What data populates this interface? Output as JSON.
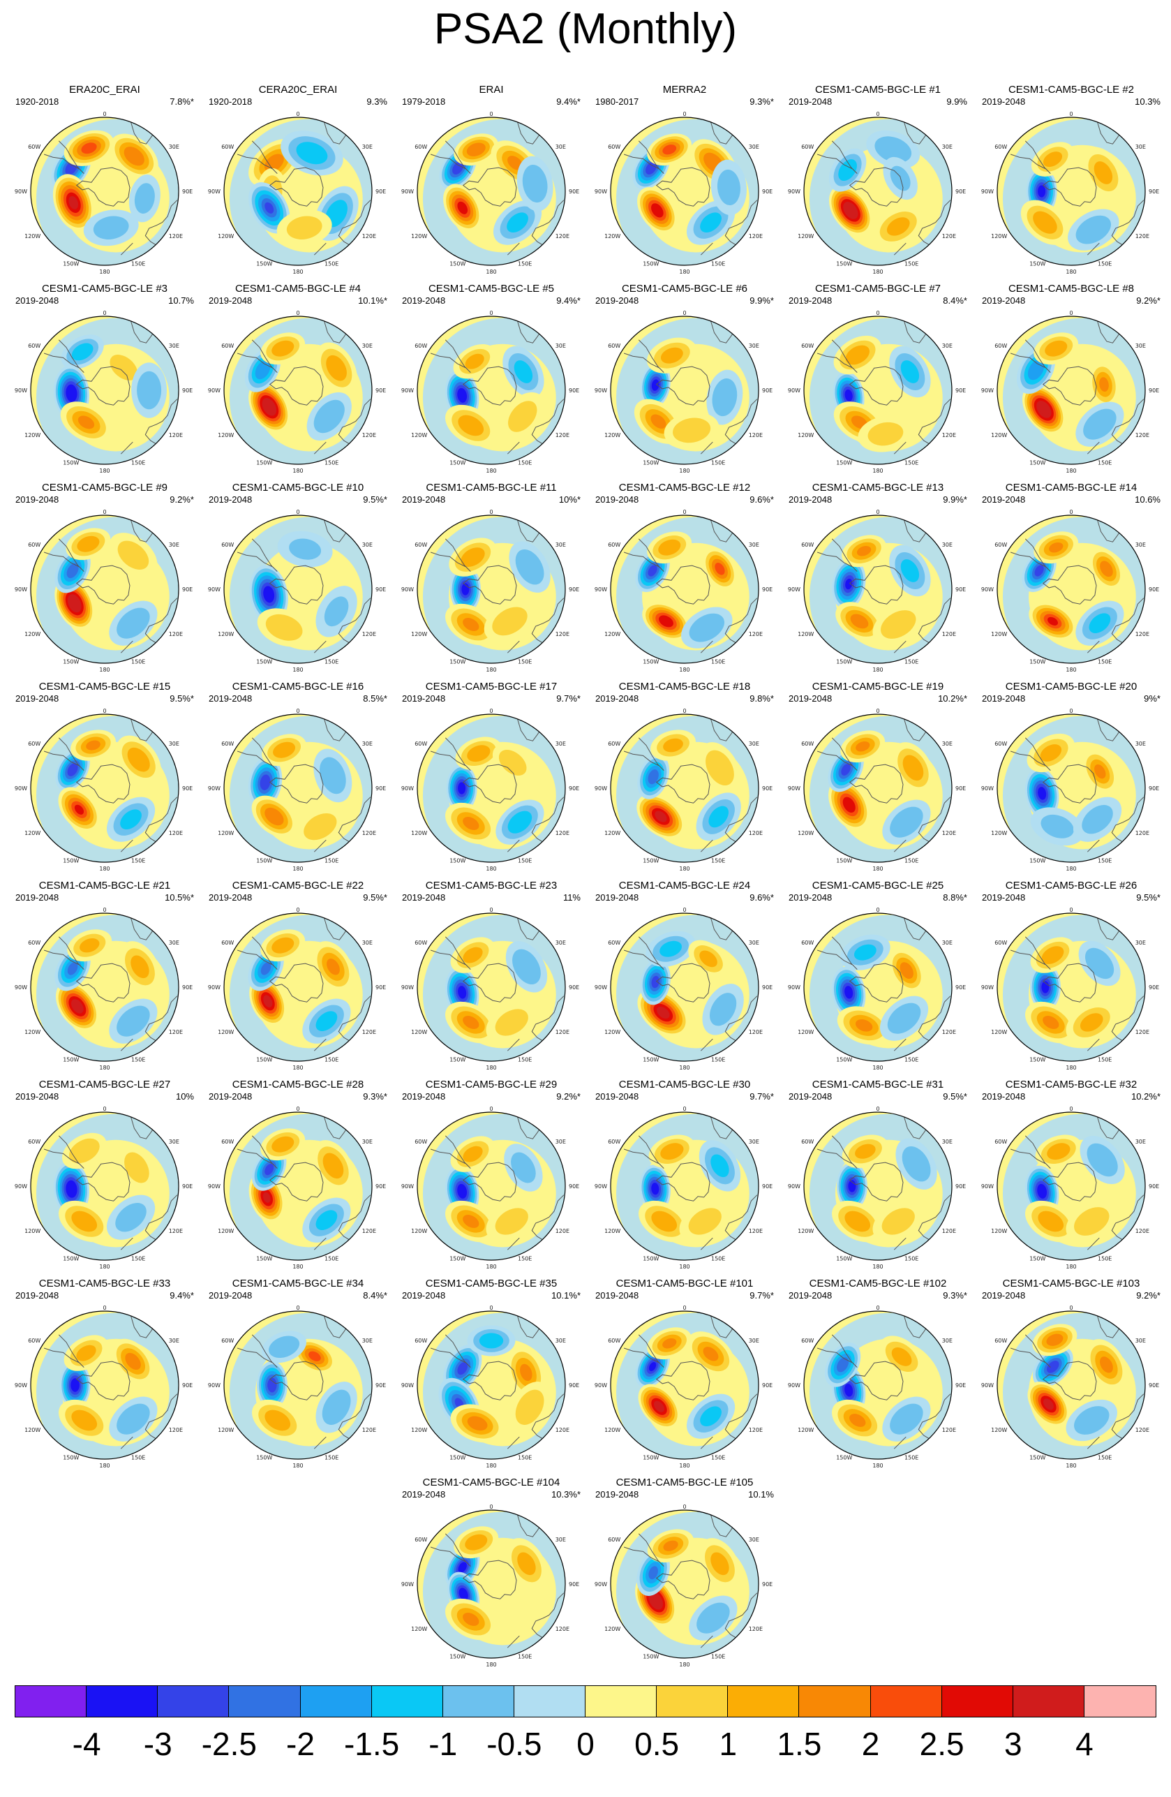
{
  "title": "PSA2 (Monthly)",
  "colorbar": {
    "colors": [
      "#8120ef",
      "#1a12f4",
      "#3443e8",
      "#3172e3",
      "#1ea0f2",
      "#0ac8f5",
      "#6cc1ee",
      "#b1def2",
      "#fdf68a",
      "#fbd33a",
      "#fbad05",
      "#f88805",
      "#f94d0b",
      "#e10a05",
      "#d01c1c",
      "#fdb3b0"
    ],
    "labels": [
      "-4",
      "-3",
      "-2.5",
      "-2",
      "-1.5",
      "-1",
      "-0.5",
      "0",
      "0.5",
      "1",
      "1.5",
      "2",
      "2.5",
      "3",
      "4"
    ]
  },
  "map_labels": {
    "top": "0",
    "upper_left": "60W",
    "upper_right": "30E",
    "left": "90W",
    "right": "90E",
    "lower_left": "120W",
    "lower_right": "120E",
    "bottom_left": "150W",
    "bottom_right": "150E",
    "bottom": "180"
  },
  "panels": [
    {
      "title": "ERA20C_ERAI",
      "years": "1920-2018",
      "pct": "7.8%*"
    },
    {
      "title": "CERA20C_ERAI",
      "years": "1920-2018",
      "pct": "9.3%"
    },
    {
      "title": "ERAI",
      "years": "1979-2018",
      "pct": "9.4%*"
    },
    {
      "title": "MERRA2",
      "years": "1980-2017",
      "pct": "9.3%*"
    },
    {
      "title": "CESM1-CAM5-BGC-LE #1",
      "years": "2019-2048",
      "pct": "9.9%"
    },
    {
      "title": "CESM1-CAM5-BGC-LE #2",
      "years": "2019-2048",
      "pct": "10.3%"
    },
    {
      "title": "CESM1-CAM5-BGC-LE #3",
      "years": "2019-2048",
      "pct": "10.7%"
    },
    {
      "title": "CESM1-CAM5-BGC-LE #4",
      "years": "2019-2048",
      "pct": "10.1%*"
    },
    {
      "title": "CESM1-CAM5-BGC-LE #5",
      "years": "2019-2048",
      "pct": "9.4%*"
    },
    {
      "title": "CESM1-CAM5-BGC-LE #6",
      "years": "2019-2048",
      "pct": "9.9%*"
    },
    {
      "title": "CESM1-CAM5-BGC-LE #7",
      "years": "2019-2048",
      "pct": "8.4%*"
    },
    {
      "title": "CESM1-CAM5-BGC-LE #8",
      "years": "2019-2048",
      "pct": "9.2%*"
    },
    {
      "title": "CESM1-CAM5-BGC-LE #9",
      "years": "2019-2048",
      "pct": "9.2%*"
    },
    {
      "title": "CESM1-CAM5-BGC-LE #10",
      "years": "2019-2048",
      "pct": "9.5%*"
    },
    {
      "title": "CESM1-CAM5-BGC-LE #11",
      "years": "2019-2048",
      "pct": "10%*"
    },
    {
      "title": "CESM1-CAM5-BGC-LE #12",
      "years": "2019-2048",
      "pct": "9.6%*"
    },
    {
      "title": "CESM1-CAM5-BGC-LE #13",
      "years": "2019-2048",
      "pct": "9.9%*"
    },
    {
      "title": "CESM1-CAM5-BGC-LE #14",
      "years": "2019-2048",
      "pct": "10.6%"
    },
    {
      "title": "CESM1-CAM5-BGC-LE #15",
      "years": "2019-2048",
      "pct": "9.5%*"
    },
    {
      "title": "CESM1-CAM5-BGC-LE #16",
      "years": "2019-2048",
      "pct": "8.5%*"
    },
    {
      "title": "CESM1-CAM5-BGC-LE #17",
      "years": "2019-2048",
      "pct": "9.7%*"
    },
    {
      "title": "CESM1-CAM5-BGC-LE #18",
      "years": "2019-2048",
      "pct": "9.8%*"
    },
    {
      "title": "CESM1-CAM5-BGC-LE #19",
      "years": "2019-2048",
      "pct": "10.2%*"
    },
    {
      "title": "CESM1-CAM5-BGC-LE #20",
      "years": "2019-2048",
      "pct": "9%*"
    },
    {
      "title": "CESM1-CAM5-BGC-LE #21",
      "years": "2019-2048",
      "pct": "10.5%*"
    },
    {
      "title": "CESM1-CAM5-BGC-LE #22",
      "years": "2019-2048",
      "pct": "9.5%*"
    },
    {
      "title": "CESM1-CAM5-BGC-LE #23",
      "years": "2019-2048",
      "pct": "11%"
    },
    {
      "title": "CESM1-CAM5-BGC-LE #24",
      "years": "2019-2048",
      "pct": "9.6%*"
    },
    {
      "title": "CESM1-CAM5-BGC-LE #25",
      "years": "2019-2048",
      "pct": "8.8%*"
    },
    {
      "title": "CESM1-CAM5-BGC-LE #26",
      "years": "2019-2048",
      "pct": "9.5%*"
    },
    {
      "title": "CESM1-CAM5-BGC-LE #27",
      "years": "2019-2048",
      "pct": "10%"
    },
    {
      "title": "CESM1-CAM5-BGC-LE #28",
      "years": "2019-2048",
      "pct": "9.3%*"
    },
    {
      "title": "CESM1-CAM5-BGC-LE #29",
      "years": "2019-2048",
      "pct": "9.2%*"
    },
    {
      "title": "CESM1-CAM5-BGC-LE #30",
      "years": "2019-2048",
      "pct": "9.7%*"
    },
    {
      "title": "CESM1-CAM5-BGC-LE #31",
      "years": "2019-2048",
      "pct": "9.5%*"
    },
    {
      "title": "CESM1-CAM5-BGC-LE #32",
      "years": "2019-2048",
      "pct": "10.2%*"
    },
    {
      "title": "CESM1-CAM5-BGC-LE #33",
      "years": "2019-2048",
      "pct": "9.4%*"
    },
    {
      "title": "CESM1-CAM5-BGC-LE #34",
      "years": "2019-2048",
      "pct": "8.4%*"
    },
    {
      "title": "CESM1-CAM5-BGC-LE #35",
      "years": "2019-2048",
      "pct": "10.1%*"
    },
    {
      "title": "CESM1-CAM5-BGC-LE #101",
      "years": "2019-2048",
      "pct": "9.7%*"
    },
    {
      "title": "CESM1-CAM5-BGC-LE #102",
      "years": "2019-2048",
      "pct": "9.3%*"
    },
    {
      "title": "CESM1-CAM5-BGC-LE #103",
      "years": "2019-2048",
      "pct": "9.2%*"
    },
    {
      "title": "CESM1-CAM5-BGC-LE #104",
      "years": "2019-2048",
      "pct": "10.3%*"
    },
    {
      "title": "CESM1-CAM5-BGC-LE #105",
      "years": "2019-2048",
      "pct": "10.1%"
    }
  ]
}
